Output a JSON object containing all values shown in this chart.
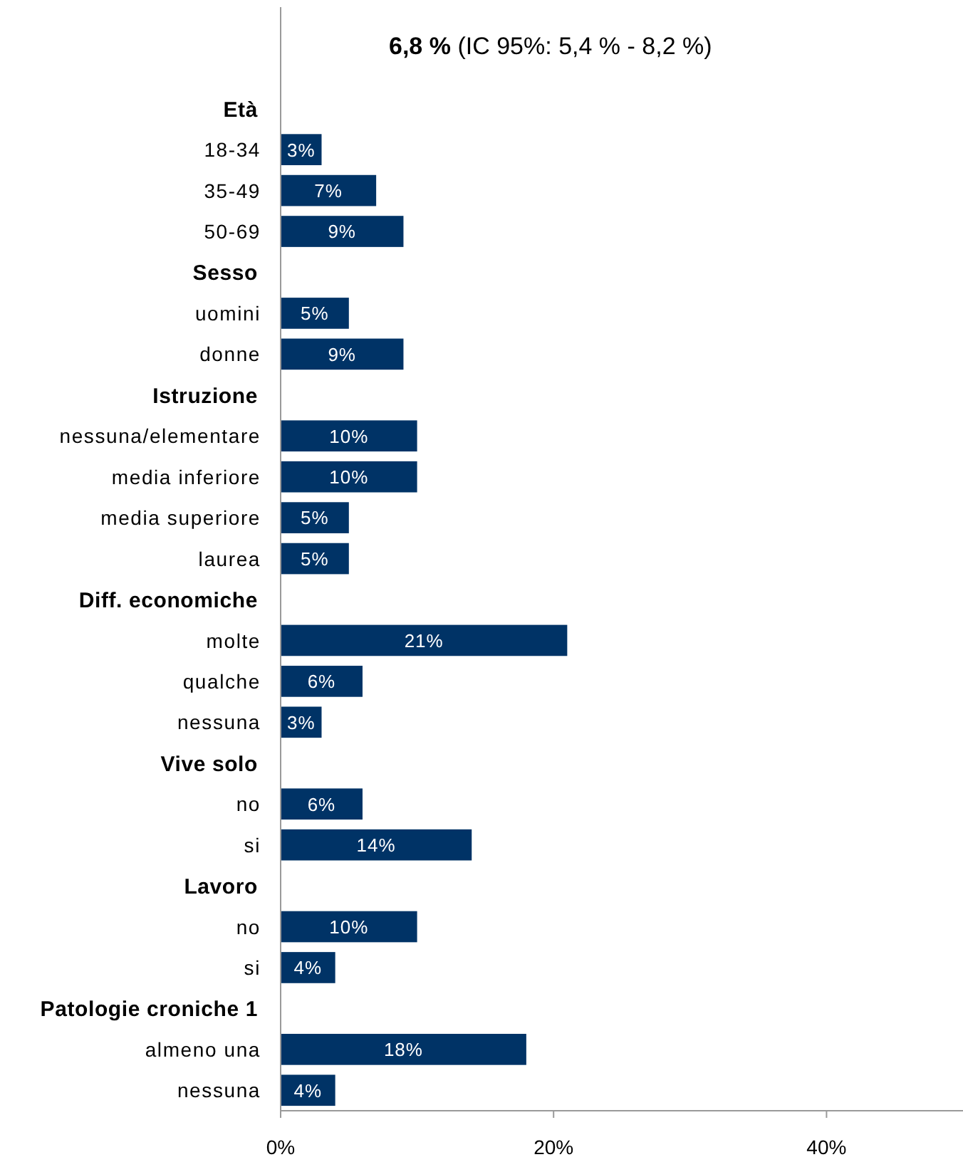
{
  "chart_data": {
    "type": "bar",
    "orientation": "horizontal",
    "title": "6,8 %",
    "subtitle": "(IC 95%: 5,4 % - 8,2 %)",
    "categories": [
      "Età",
      "18-34",
      "35-49",
      "50-69",
      "Sesso",
      "uomini",
      "donne",
      "Istruzione",
      "nessuna/elementare",
      "media inferiore",
      "media superiore",
      "laurea",
      "Diff. economiche",
      "molte",
      "qualche",
      "nessuna",
      "Vive solo",
      "no",
      "si",
      "Lavoro",
      "no",
      "si",
      "Patologie croniche 1",
      "almeno una",
      "nessuna"
    ],
    "values": [
      null,
      3,
      7,
      9,
      null,
      5,
      9,
      null,
      10,
      10,
      5,
      5,
      null,
      21,
      6,
      3,
      null,
      6,
      14,
      null,
      10,
      4,
      null,
      18,
      4
    ],
    "value_labels": [
      null,
      "3%",
      "7%",
      "9%",
      null,
      "5%",
      "9%",
      null,
      "10%",
      "10%",
      "5%",
      "5%",
      null,
      "21%",
      "6%",
      "3%",
      null,
      "6%",
      "14%",
      null,
      "10%",
      "4%",
      null,
      "18%",
      "4%"
    ],
    "color": "#003366",
    "xlim": [
      0,
      50
    ],
    "xticks": [
      {
        "value": 0,
        "label": "0%"
      },
      {
        "value": 20,
        "label": "20%"
      },
      {
        "value": 40,
        "label": "40%"
      }
    ]
  }
}
